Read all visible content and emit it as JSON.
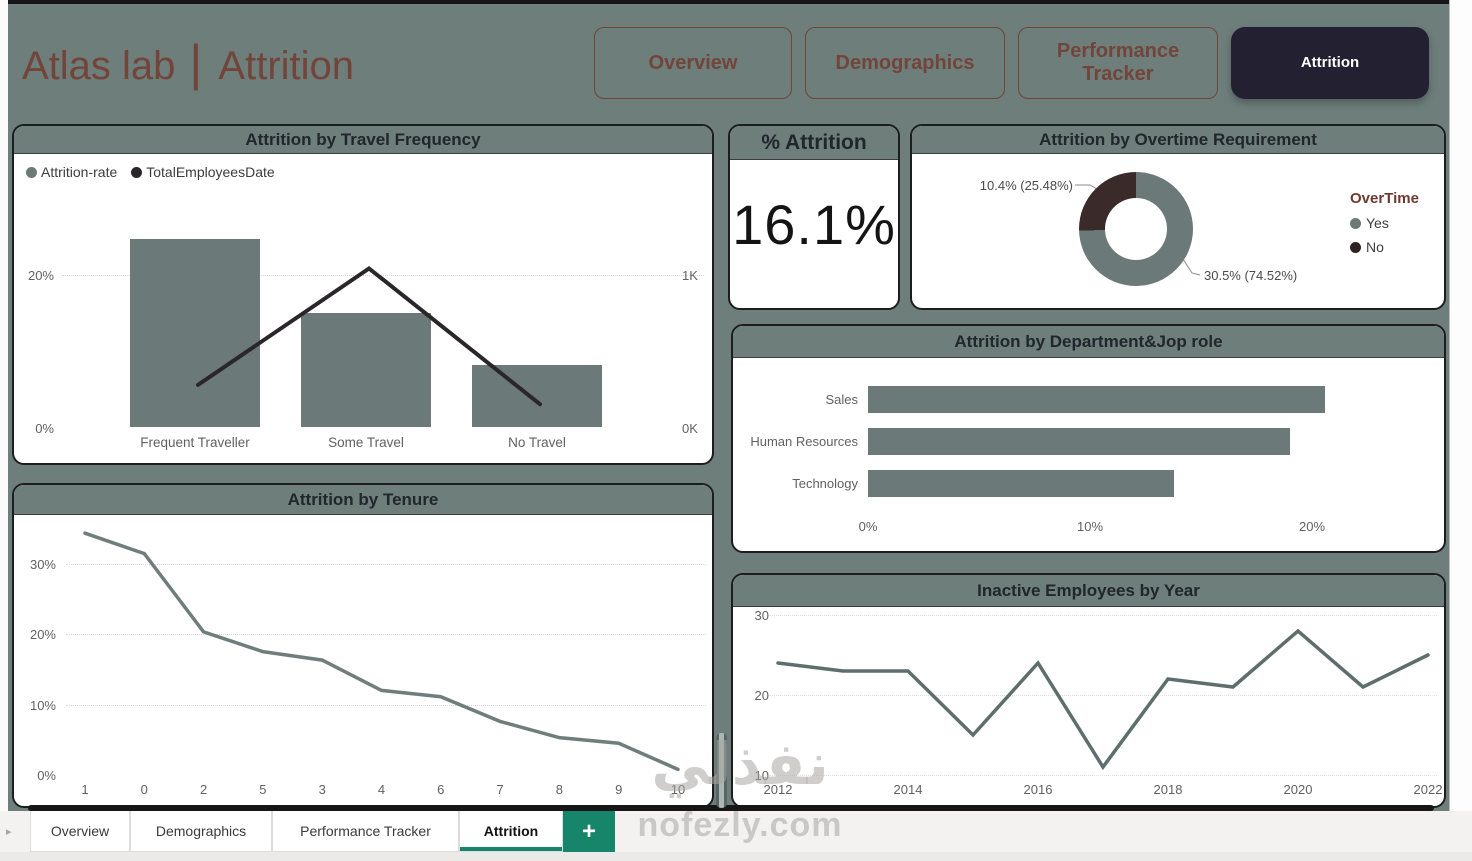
{
  "header": {
    "brand": "Atlas lab",
    "separator": "|",
    "page_title": "Attrition",
    "nav": [
      {
        "label": "Overview",
        "active": false
      },
      {
        "label": "Demographics",
        "active": false
      },
      {
        "label": "Performance Tracker",
        "active": false
      },
      {
        "label": "Attrition",
        "active": true
      }
    ]
  },
  "colors": {
    "canvas": "#6d7e7b",
    "series_gray": "#6b7a79",
    "series_dark": "#2b2629",
    "donut_dark": "#3a2a2a",
    "maroon": "#73443a",
    "active_nav": "#232031",
    "teal_accent": "#17856a"
  },
  "cards": {
    "travel": {
      "title": "Attrition by Travel Frequency",
      "legend": [
        {
          "label": "Attrition-rate",
          "color": "#6b7a79"
        },
        {
          "label": "TotalEmployeesDate",
          "color": "#2b2629"
        }
      ],
      "chart_data": {
        "type": "combo-bar-line",
        "categories": [
          "Frequent Traveller",
          "Some Travel",
          "No Travel"
        ],
        "series": [
          {
            "name": "Attrition-rate",
            "type": "bar",
            "unit": "%",
            "values": [
              24.7,
              15.0,
              8.1
            ]
          },
          {
            "name": "TotalEmployeesDate",
            "type": "line",
            "unit": "count",
            "values": [
              277,
              1043,
              150
            ]
          }
        ],
        "y_left": {
          "ticks": [
            "20%",
            "0%"
          ],
          "range": [
            0,
            20
          ]
        },
        "y_right": {
          "ticks": [
            "1K",
            "0K"
          ],
          "range": [
            0,
            1000
          ]
        },
        "grid": "dotted at 20%",
        "legend_position": "top-left"
      }
    },
    "pct": {
      "title": "% Attrition",
      "value": "16.1%"
    },
    "overtime": {
      "title": "Attrition by Overtime Requirement",
      "legend_title": "OverTime",
      "legend": [
        {
          "label": "Yes",
          "color": "#6b7a79"
        },
        {
          "label": "No",
          "color": "#2b2222"
        }
      ],
      "callout_no": "10.4% (25.48%)",
      "callout_yes": "30.5% (74.52%)",
      "chart_data": {
        "type": "pie",
        "slices": [
          {
            "label": "Yes",
            "attrition_rate": "30.5%",
            "share_pct": 74.52,
            "color": "#6b7a79"
          },
          {
            "label": "No",
            "attrition_rate": "10.4%",
            "share_pct": 25.48,
            "color": "#3a2a2a"
          }
        ],
        "donut": true,
        "start_angle": "top",
        "direction": "clockwise",
        "legend_position": "right"
      }
    },
    "dept": {
      "title": "Attrition by Department&Jop role",
      "chart_data": {
        "type": "bar",
        "orientation": "horizontal",
        "categories": [
          "Sales",
          "Human Resources",
          "Technology"
        ],
        "values": [
          20.6,
          19.0,
          13.8
        ],
        "x_ticks": [
          "0%",
          "10%",
          "20%"
        ],
        "xlim": [
          0,
          22
        ],
        "unit": "%"
      }
    },
    "tenure": {
      "title": "Attrition by Tenure",
      "chart_data": {
        "type": "line",
        "categories": [
          "1",
          "0",
          "2",
          "5",
          "3",
          "4",
          "6",
          "7",
          "8",
          "9",
          "10"
        ],
        "values": [
          34.3,
          31.4,
          20.3,
          17.5,
          16.3,
          12.0,
          11.1,
          7.6,
          5.3,
          4.5,
          0.8
        ],
        "y_ticks": [
          "30%",
          "20%",
          "10%",
          "0%"
        ],
        "ylim": [
          0,
          36
        ],
        "unit": "%",
        "grid": "dotted horizontal"
      }
    },
    "inactive": {
      "title": "Inactive Employees by Year",
      "chart_data": {
        "type": "line",
        "x": [
          2012,
          2013,
          2014,
          2015,
          2016,
          2017,
          2018,
          2019,
          2020,
          2021,
          2022
        ],
        "values": [
          24,
          23,
          23,
          15,
          24,
          11,
          22,
          21,
          28,
          21,
          25
        ],
        "x_ticks": [
          "2012",
          "2014",
          "2016",
          "2018",
          "2020",
          "2022"
        ],
        "y_ticks": [
          "30",
          "20",
          "10"
        ],
        "ylim": [
          10,
          31
        ],
        "grid": "dotted horizontal"
      }
    }
  },
  "tabs": {
    "items": [
      {
        "label": "Overview",
        "active": false
      },
      {
        "label": "Demographics",
        "active": false
      },
      {
        "label": "Performance Tracker",
        "active": false
      },
      {
        "label": "Attrition",
        "active": true
      }
    ],
    "add_label": "+",
    "chevron": "▸"
  },
  "watermark": {
    "arabic": "نفذلي",
    "latin": "nofezly.com"
  }
}
